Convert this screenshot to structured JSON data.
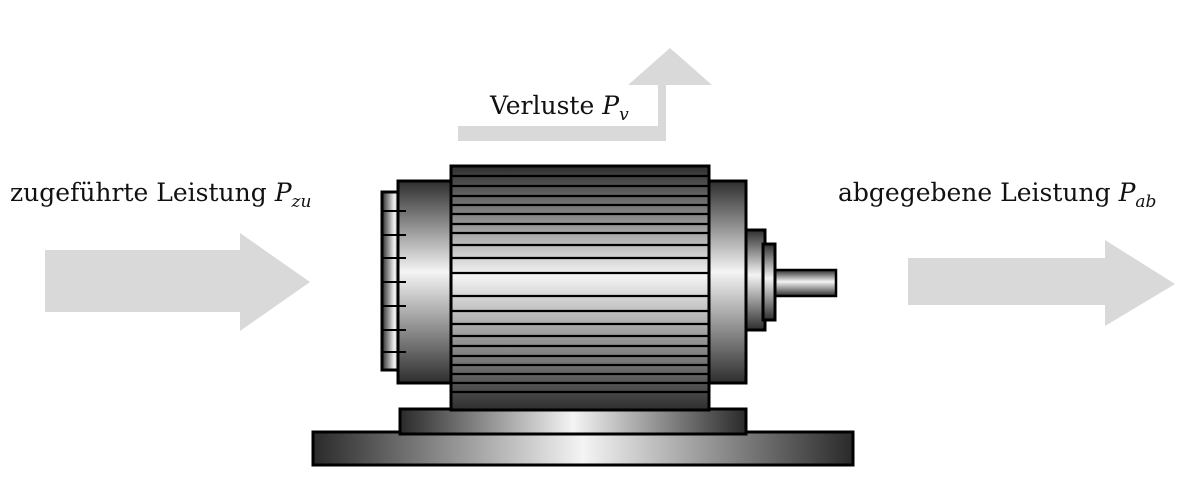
{
  "labels": {
    "input": {
      "text": "zugeführte Leistung ",
      "symbol": "P",
      "subscript": "zu"
    },
    "losses": {
      "text": "Verluste ",
      "symbol": "P",
      "subscript": "v"
    },
    "output": {
      "text": "abgegebene Leistung ",
      "symbol": "P",
      "subscript": "ab"
    }
  },
  "colors": {
    "arrow": "#d9d9d9",
    "outline": "#000000",
    "metal_light": "#f2f2f2",
    "metal_dark": "#3a3a3a"
  },
  "icons": {
    "motor": "electric-motor-icon",
    "input_arrow": "arrow-right-icon",
    "output_arrow": "arrow-right-icon",
    "loss_arrow": "arrow-up-icon"
  }
}
